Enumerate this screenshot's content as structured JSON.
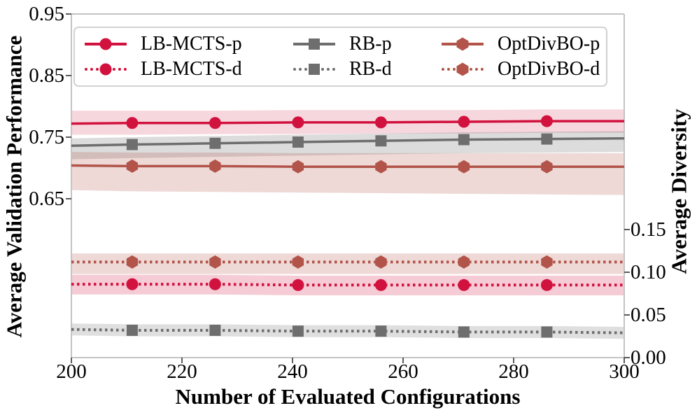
{
  "legend": {
    "items": [
      {
        "label": "LB-MCTS-p",
        "style": "solid",
        "marker": "circle",
        "color": "#d2123e"
      },
      {
        "label": "LB-MCTS-d",
        "style": "dotted",
        "marker": "circle",
        "color": "#d2123e"
      },
      {
        "label": "RB-p",
        "style": "solid",
        "marker": "square",
        "color": "#6e6e6e"
      },
      {
        "label": "RB-d",
        "style": "dotted",
        "marker": "square",
        "color": "#6e6e6e"
      },
      {
        "label": "OptDivBO-p",
        "style": "solid",
        "marker": "hexagon",
        "color": "#b2544a"
      },
      {
        "label": "OptDivBO-d",
        "style": "dotted",
        "marker": "hexagon",
        "color": "#b2544a"
      }
    ]
  },
  "chart_data": {
    "type": "line",
    "title": "",
    "xlabel": "Number of Evaluated Configurations",
    "ylabel_left": "Average Validation Performance",
    "ylabel_right": "Average Diversity",
    "xlim": [
      200,
      300
    ],
    "ylim_left": [
      0.392,
      0.95
    ],
    "ylim_right": [
      0.0,
      0.4025
    ],
    "grid": false,
    "legend_position": "upper center, 3 columns",
    "xtick_values": [
      200,
      220,
      240,
      260,
      280,
      300
    ],
    "xtick_labels": [
      "200",
      "220",
      "240",
      "260",
      "280",
      "300"
    ],
    "ytick_left_values": [
      0.65,
      0.75,
      0.85,
      0.95
    ],
    "ytick_left_labels": [
      "0.65",
      "0.75",
      "0.85",
      "0.95"
    ],
    "ytick_right_values": [
      0.0,
      0.05,
      0.1,
      0.15
    ],
    "ytick_right_labels": [
      "0.00",
      "0.05",
      "0.10",
      "0.15"
    ],
    "x": [
      200,
      211,
      226,
      241,
      256,
      271,
      286,
      300
    ],
    "marker_x": [
      211,
      226,
      241,
      256,
      271,
      286
    ],
    "series": [
      {
        "name": "LB-MCTS-p",
        "axis": "left",
        "style": "solid",
        "marker": "circle",
        "color": "#d2123e",
        "band_color": "#d2123e",
        "band_opacity": 0.17,
        "values": [
          0.772,
          0.773,
          0.773,
          0.774,
          0.774,
          0.775,
          0.776,
          0.776
        ],
        "band_lower": [
          0.754,
          0.754,
          0.755,
          0.755,
          0.756,
          0.756,
          0.757,
          0.757
        ],
        "band_upper": [
          0.793,
          0.793,
          0.793,
          0.794,
          0.794,
          0.794,
          0.795,
          0.795
        ]
      },
      {
        "name": "RB-p",
        "axis": "left",
        "style": "solid",
        "marker": "square",
        "color": "#6e6e6e",
        "band_color": "#808080",
        "band_opacity": 0.28,
        "values": [
          0.736,
          0.738,
          0.74,
          0.742,
          0.744,
          0.746,
          0.747,
          0.748
        ],
        "band_lower": [
          0.714,
          0.716,
          0.718,
          0.72,
          0.722,
          0.724,
          0.725,
          0.726
        ],
        "band_upper": [
          0.748,
          0.75,
          0.752,
          0.754,
          0.756,
          0.758,
          0.759,
          0.76
        ]
      },
      {
        "name": "OptDivBO-p",
        "axis": "left",
        "style": "solid",
        "marker": "hexagon",
        "color": "#b2544a",
        "band_color": "#b2544a",
        "band_opacity": 0.22,
        "values": [
          0.704,
          0.703,
          0.703,
          0.702,
          0.702,
          0.702,
          0.702,
          0.702
        ],
        "band_lower": [
          0.664,
          0.662,
          0.661,
          0.66,
          0.659,
          0.658,
          0.657,
          0.656
        ],
        "band_upper": [
          0.726,
          0.725,
          0.725,
          0.724,
          0.724,
          0.724,
          0.724,
          0.724
        ]
      },
      {
        "name": "LB-MCTS-d",
        "axis": "right",
        "style": "dotted",
        "marker": "circle",
        "color": "#d2123e",
        "band_color": "#d2123e",
        "band_opacity": 0.22,
        "values": [
          0.086,
          0.086,
          0.086,
          0.085,
          0.085,
          0.085,
          0.085,
          0.085
        ],
        "band_lower": [
          0.074,
          0.074,
          0.074,
          0.073,
          0.073,
          0.073,
          0.073,
          0.073
        ],
        "band_upper": [
          0.097,
          0.097,
          0.097,
          0.096,
          0.096,
          0.096,
          0.096,
          0.096
        ]
      },
      {
        "name": "RB-d",
        "axis": "right",
        "style": "dotted",
        "marker": "square",
        "color": "#6e6e6e",
        "band_color": "#808080",
        "band_opacity": 0.25,
        "values": [
          0.033,
          0.032,
          0.032,
          0.031,
          0.031,
          0.03,
          0.03,
          0.029
        ],
        "band_lower": [
          0.026,
          0.025,
          0.025,
          0.024,
          0.024,
          0.023,
          0.023,
          0.022
        ],
        "band_upper": [
          0.04,
          0.039,
          0.039,
          0.038,
          0.038,
          0.037,
          0.037,
          0.036
        ]
      },
      {
        "name": "OptDivBO-d",
        "axis": "right",
        "style": "dotted",
        "marker": "hexagon",
        "color": "#b2544a",
        "band_color": "#b2544a",
        "band_opacity": 0.22,
        "values": [
          0.112,
          0.112,
          0.112,
          0.112,
          0.112,
          0.112,
          0.112,
          0.112
        ],
        "band_lower": [
          0.098,
          0.098,
          0.098,
          0.098,
          0.098,
          0.098,
          0.098,
          0.098
        ],
        "band_upper": [
          0.122,
          0.122,
          0.122,
          0.122,
          0.122,
          0.122,
          0.122,
          0.122
        ]
      }
    ]
  }
}
